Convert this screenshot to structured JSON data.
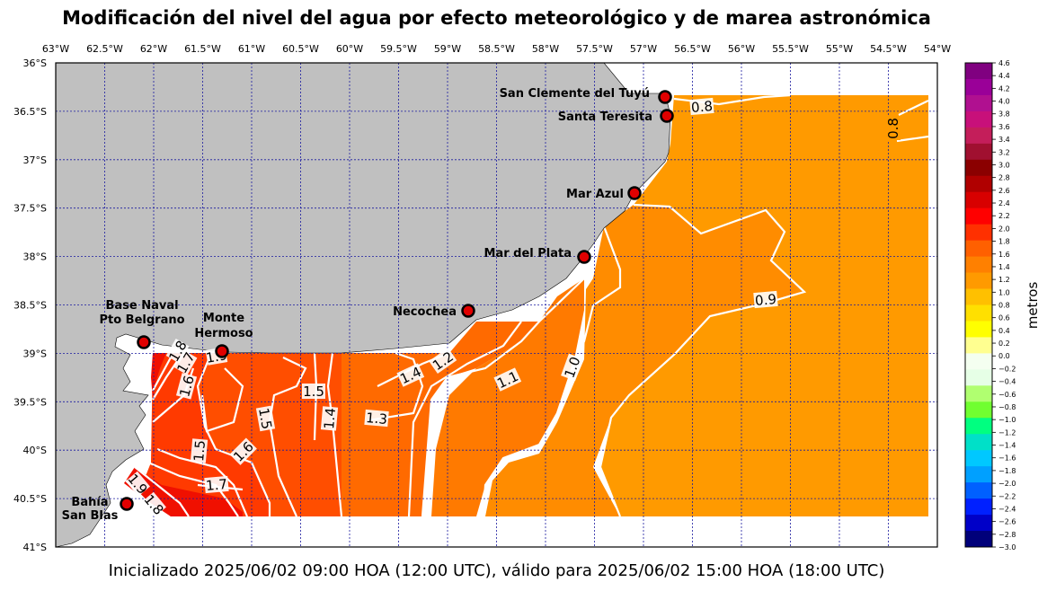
{
  "title": "Modificación del nivel del agua por efecto meteorológico y de marea astronómica",
  "footer": "Inicializado 2025/06/02 09:00 HOA (12:00 UTC), válido para 2025/06/02 15:00 HOA (18:00 UTC)",
  "lon_ticks": [
    "63°W",
    "62.5°W",
    "62°W",
    "61.5°W",
    "61°W",
    "60.5°W",
    "60°W",
    "59.5°W",
    "59°W",
    "58.5°W",
    "58°W",
    "57.5°W",
    "57°W",
    "56.5°W",
    "56°W",
    "55.5°W",
    "55°W",
    "54.5°W",
    "54°W"
  ],
  "lat_ticks": [
    "36°S",
    "36.5°S",
    "37°S",
    "37.5°S",
    "38°S",
    "38.5°S",
    "39°S",
    "39.5°S",
    "40°S",
    "40.5°S",
    "41°S"
  ],
  "colorbar": {
    "label": "metros",
    "ticks": [
      "4.6",
      "4.4",
      "4.2",
      "4.0",
      "3.8",
      "3.6",
      "3.4",
      "3.2",
      "3.0",
      "2.8",
      "2.6",
      "2.4",
      "2.2",
      "2.0",
      "1.8",
      "1.6",
      "1.4",
      "1.2",
      "1.0",
      "0.8",
      "0.6",
      "0.4",
      "0.2",
      "0.0",
      "−0.2",
      "−0.4",
      "−0.6",
      "−0.8",
      "−1.0",
      "−1.2",
      "−1.4",
      "−1.6",
      "−1.8",
      "−2.0",
      "−2.2",
      "−2.4",
      "−2.6",
      "−2.8",
      "−3.0"
    ],
    "colors": [
      "#800080",
      "#9a0098",
      "#b01090",
      "#c8107a",
      "#c41e5a",
      "#a01030",
      "#8b0000",
      "#b00000",
      "#d80000",
      "#ff0000",
      "#ff3000",
      "#ff6000",
      "#ff8000",
      "#ff9a00",
      "#ffc000",
      "#ffe000",
      "#ffff00",
      "#ffff90",
      "#f4fff0",
      "#e6ffe6",
      "#b0ff70",
      "#70ff30",
      "#00ff80",
      "#00e0c8",
      "#00c8ff",
      "#00a0ff",
      "#0060ff",
      "#0020ff",
      "#0000c8",
      "#00007a"
    ]
  },
  "locations": [
    {
      "name": "San Clemente del Tuyú"
    },
    {
      "name": "Santa Teresita"
    },
    {
      "name": "Mar Azul"
    },
    {
      "name": "Mar del Plata"
    },
    {
      "name": "Necochea"
    },
    {
      "name_line1": "Base Naval",
      "name_line2": "Pto Belgrano"
    },
    {
      "name_line1": "Monte",
      "name_line2": "Hermoso"
    },
    {
      "name_line1": "Bahía",
      "name_line2": "San Blas"
    }
  ],
  "contour_labels": [
    "0.8",
    "0.8",
    "0.9",
    "1.0",
    "1.1",
    "1.2",
    "1.4",
    "1.3",
    "1.4",
    "1.5",
    "1.5",
    "1.6",
    "1.5",
    "1.7",
    "1.6",
    "1.7",
    "1.8",
    "1.9",
    "1.8",
    "1.9"
  ],
  "colors": {
    "land": "#c0c0c0",
    "grid": "#1a1aa0",
    "contour": "#ffffff",
    "marker_fill": "#e00000",
    "levels": [
      "#ff9a00",
      "#ff8c00",
      "#ff7d00",
      "#ff6a00",
      "#ff5500",
      "#ff4000",
      "#ff2a00",
      "#f01000"
    ]
  }
}
